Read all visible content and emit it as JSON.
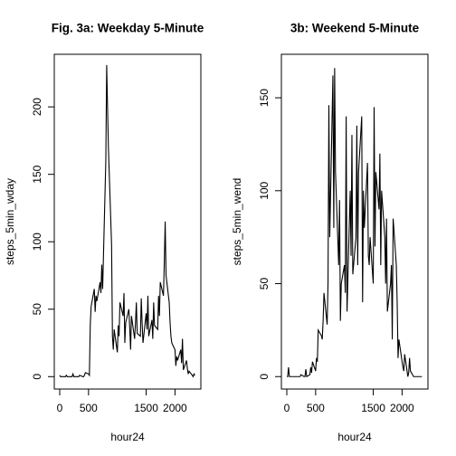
{
  "chart_data": [
    {
      "type": "line",
      "title": "Fig. 3a: Weekday 5-Minute",
      "xlabel": "hour24",
      "ylabel": "steps_5min_wday",
      "color": "#000000",
      "x": [
        0,
        15,
        30,
        45,
        100,
        115,
        130,
        145,
        200,
        215,
        230,
        245,
        300,
        315,
        330,
        345,
        400,
        415,
        430,
        445,
        500,
        515,
        530,
        545,
        600,
        615,
        630,
        645,
        700,
        715,
        730,
        745,
        800,
        815,
        830,
        845,
        900,
        915,
        930,
        945,
        1000,
        1015,
        1030,
        1045,
        1100,
        1115,
        1130,
        1145,
        1200,
        1215,
        1230,
        1245,
        1300,
        1315,
        1330,
        1345,
        1400,
        1415,
        1430,
        1445,
        1500,
        1515,
        1530,
        1545,
        1600,
        1615,
        1630,
        1645,
        1700,
        1715,
        1730,
        1745,
        1800,
        1815,
        1830,
        1845,
        1900,
        1915,
        1930,
        1945,
        2000,
        2015,
        2030,
        2045,
        2100,
        2115,
        2130,
        2145,
        2200,
        2215,
        2230,
        2245,
        2300,
        2315,
        2330,
        2345
      ],
      "values": [
        1,
        0,
        0,
        0,
        0,
        1,
        0,
        0,
        0,
        0,
        2,
        0,
        0,
        0,
        0,
        1,
        0,
        0,
        1,
        3,
        2,
        1,
        38,
        52,
        65,
        48,
        60,
        56,
        70,
        62,
        83,
        65,
        160,
        231,
        200,
        170,
        98,
        30,
        20,
        35,
        18,
        38,
        30,
        55,
        45,
        62,
        25,
        40,
        50,
        36,
        20,
        45,
        28,
        40,
        55,
        32,
        30,
        58,
        40,
        25,
        47,
        35,
        60,
        30,
        42,
        28,
        55,
        38,
        35,
        60,
        45,
        70,
        60,
        85,
        115,
        75,
        55,
        40,
        30,
        25,
        20,
        8,
        15,
        12,
        20,
        10,
        28,
        5,
        12,
        6,
        2,
        4,
        1,
        0,
        2,
        1
      ],
      "xlim": [
        -94,
        2449
      ],
      "xticks": [
        0,
        500,
        1500,
        2000
      ],
      "ylim": [
        -9.2,
        239
      ],
      "yticks": [
        0,
        50,
        100,
        150,
        200
      ]
    },
    {
      "type": "line",
      "title": "3b: Weekend 5-Minute",
      "xlabel": "hour24",
      "ylabel": "steps_5min_wend",
      "color": "#000000",
      "x": [
        0,
        15,
        30,
        45,
        100,
        115,
        130,
        145,
        200,
        215,
        230,
        245,
        300,
        315,
        330,
        345,
        400,
        415,
        430,
        445,
        500,
        515,
        530,
        545,
        600,
        615,
        630,
        645,
        700,
        715,
        730,
        745,
        800,
        815,
        830,
        845,
        900,
        915,
        930,
        945,
        1000,
        1015,
        1030,
        1045,
        1100,
        1115,
        1130,
        1145,
        1200,
        1215,
        1230,
        1245,
        1300,
        1315,
        1330,
        1345,
        1400,
        1415,
        1430,
        1445,
        1500,
        1515,
        1530,
        1545,
        1600,
        1615,
        1630,
        1645,
        1700,
        1715,
        1730,
        1745,
        1800,
        1815,
        1830,
        1845,
        1900,
        1915,
        1930,
        1945,
        2000,
        2015,
        2030,
        2045,
        2100,
        2115,
        2130,
        2145,
        2200,
        2215,
        2230,
        2245,
        2300,
        2315,
        2330,
        2345
      ],
      "values": [
        0,
        0,
        5,
        0,
        0,
        0,
        0,
        0,
        0,
        0,
        0,
        1,
        0,
        0,
        4,
        0,
        1,
        5,
        2,
        8,
        3,
        10,
        8,
        25,
        22,
        20,
        30,
        45,
        28,
        50,
        146,
        75,
        162,
        80,
        166,
        110,
        60,
        95,
        30,
        50,
        60,
        45,
        140,
        35,
        100,
        65,
        130,
        55,
        75,
        135,
        60,
        110,
        140,
        40,
        100,
        80,
        115,
        65,
        60,
        75,
        50,
        145,
        70,
        110,
        90,
        120,
        60,
        100,
        75,
        50,
        85,
        35,
        50,
        60,
        20,
        85,
        60,
        40,
        10,
        20,
        8,
        5,
        3,
        12,
        0,
        2,
        10,
        3,
        0,
        0,
        0,
        0,
        0,
        0,
        0,
        0
      ],
      "xlim": [
        -94,
        2449
      ],
      "xticks": [
        0,
        500,
        1500,
        2000
      ],
      "ylim": [
        -6.7,
        173.4
      ],
      "yticks": [
        0,
        50,
        100,
        150
      ]
    }
  ]
}
